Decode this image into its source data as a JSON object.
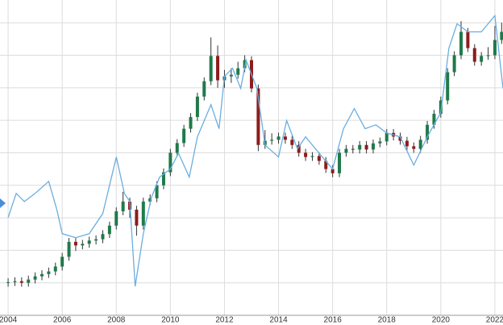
{
  "chart_data": {
    "type": "candlestick",
    "x": [
      2004,
      2004.25,
      2004.5,
      2004.75,
      2005,
      2005.25,
      2005.5,
      2005.75,
      2006,
      2006.25,
      2006.5,
      2006.75,
      2007,
      2007.25,
      2007.5,
      2007.75,
      2008,
      2008.25,
      2008.5,
      2008.75,
      2009,
      2009.25,
      2009.5,
      2009.75,
      2010,
      2010.25,
      2010.5,
      2010.75,
      2011,
      2011.25,
      2011.5,
      2011.75,
      2012,
      2012.25,
      2012.5,
      2012.75,
      2013,
      2013.25,
      2013.5,
      2013.75,
      2014,
      2014.25,
      2014.5,
      2014.75,
      2015,
      2015.25,
      2015.5,
      2015.75,
      2016,
      2016.25,
      2016.5,
      2016.75,
      2017,
      2017.25,
      2017.5,
      2017.75,
      2018,
      2018.25,
      2018.5,
      2018.75,
      2019,
      2019.25,
      2019.5,
      2019.75,
      2020,
      2020.25,
      2020.5,
      2020.75,
      2021,
      2021.25,
      2021.5,
      2021.75,
      2022,
      2022.25
    ],
    "open": [
      10.0,
      10.2,
      10.5,
      10.0,
      11.0,
      12.0,
      12.7,
      13.5,
      15.0,
      18.0,
      22.6,
      21.5,
      22.0,
      23.0,
      23.4,
      25.0,
      27.6,
      32.0,
      35.0,
      32.5,
      27.6,
      35.0,
      36.0,
      40.0,
      44.0,
      50.0,
      53.0,
      57.4,
      61.0,
      67.3,
      72.0,
      79.8,
      72.3,
      73.5,
      74.0,
      76.0,
      78.5,
      69.8,
      52.4,
      53.7,
      54.0,
      55.0,
      54.0,
      52.4,
      50.0,
      48.7,
      49.0,
      47.5,
      45.0,
      43.7,
      50.0,
      51.2,
      51.0,
      52.4,
      51.0,
      52.9,
      53.5,
      56.1,
      55.0,
      53.7,
      52.0,
      51.2,
      54.0,
      58.6,
      62.0,
      66.1,
      74.8,
      80.0,
      87.2,
      82.2,
      78.0,
      79.8,
      80.0,
      84.7
    ],
    "high": [
      11.4,
      11.7,
      11.7,
      12.2,
      13.2,
      13.9,
      14.7,
      16.2,
      19.2,
      23.8,
      23.8,
      23.2,
      24.2,
      24.6,
      26.2,
      28.8,
      33.2,
      38.0,
      36.2,
      33.7,
      36.2,
      37.2,
      41.2,
      45.2,
      51.2,
      54.2,
      58.6,
      62.2,
      68.5,
      73.2,
      85.5,
      83.0,
      75.5,
      76.0,
      78.0,
      80.0,
      79.7,
      71.0,
      57.0,
      56.0,
      56.2,
      56.2,
      55.2,
      53.6,
      51.2,
      50.2,
      50.2,
      48.7,
      46.2,
      51.2,
      52.4,
      52.4,
      53.6,
      53.6,
      54.1,
      54.7,
      57.3,
      57.3,
      56.2,
      54.9,
      53.2,
      55.2,
      59.8,
      63.2,
      67.3,
      76.0,
      81.2,
      90.5,
      88.4,
      83.4,
      81.0,
      82.5,
      89.0,
      90.0
    ],
    "low": [
      8.8,
      9.0,
      8.8,
      8.8,
      9.8,
      10.8,
      11.5,
      12.3,
      13.8,
      16.8,
      19.8,
      20.3,
      20.8,
      21.8,
      22.2,
      23.8,
      26.4,
      30.8,
      30.0,
      24.5,
      26.4,
      33.8,
      34.8,
      38.8,
      42.8,
      48.8,
      51.8,
      56.2,
      59.8,
      66.1,
      70.8,
      70.0,
      70.0,
      71.5,
      72.8,
      74.8,
      68.6,
      50.5,
      51.2,
      52.5,
      52.8,
      52.8,
      51.2,
      48.8,
      47.5,
      47.5,
      46.3,
      43.8,
      42.5,
      42.5,
      48.8,
      49.8,
      49.8,
      49.8,
      49.8,
      51.7,
      52.3,
      53.8,
      52.5,
      50.8,
      50.0,
      50.0,
      52.8,
      57.4,
      60.8,
      64.9,
      73.6,
      78.8,
      81.0,
      76.8,
      76.8,
      78.6,
      78.8,
      83.5
    ],
    "close": [
      10.2,
      10.5,
      10.0,
      11.0,
      12.0,
      12.7,
      13.5,
      15.0,
      18.0,
      22.6,
      21.5,
      22.0,
      23.0,
      23.4,
      25.0,
      27.6,
      32.0,
      35.0,
      32.5,
      27.6,
      35.0,
      36.0,
      40.0,
      44.0,
      50.0,
      53.0,
      57.4,
      61.0,
      67.3,
      72.0,
      79.8,
      72.3,
      73.5,
      74.0,
      76.0,
      78.5,
      69.8,
      52.4,
      53.7,
      54.0,
      55.0,
      54.0,
      52.4,
      50.0,
      48.7,
      49.0,
      47.5,
      45.0,
      43.7,
      50.0,
      51.2,
      51.0,
      52.4,
      51.0,
      52.9,
      53.5,
      56.1,
      55.0,
      53.7,
      52.0,
      51.2,
      54.0,
      58.6,
      62.0,
      66.1,
      74.8,
      80.0,
      87.2,
      82.2,
      78.0,
      79.8,
      80.0,
      84.7,
      87.2
    ],
    "up_color": "#1f7a4a",
    "down_color": "#8e1c1c",
    "line": {
      "color": "#6aaee0",
      "x": [
        2004,
        2004.3,
        2004.6,
        2005,
        2005.5,
        2005.8,
        2006,
        2006.5,
        2007,
        2007.5,
        2008,
        2008.3,
        2008.5,
        2008.7,
        2009,
        2009.3,
        2009.6,
        2010,
        2010.3,
        2010.7,
        2011,
        2011.5,
        2011.8,
        2012,
        2012.3,
        2012.6,
        2012.8,
        2013.2,
        2013.5,
        2014,
        2014.3,
        2014.7,
        2015,
        2015.5,
        2016,
        2016.4,
        2016.8,
        2017.2,
        2017.6,
        2018,
        2018.5,
        2019,
        2019.5,
        2020,
        2020.3,
        2020.6,
        2021,
        2021.5,
        2022,
        2022.3
      ],
      "values": [
        30.1,
        37.5,
        35.0,
        37.5,
        41.2,
        32.5,
        25.1,
        23.9,
        25.1,
        31.3,
        48.7,
        37.5,
        35.0,
        8.9,
        25.1,
        36.3,
        42.5,
        45.0,
        49.9,
        42.5,
        54.9,
        64.8,
        57.4,
        73.5,
        76.0,
        69.8,
        78.5,
        69.8,
        52.4,
        48.7,
        59.9,
        51.2,
        54.9,
        49.9,
        45.0,
        57.4,
        63.6,
        57.4,
        58.6,
        56.1,
        54.9,
        46.2,
        54.9,
        62.4,
        82.2,
        89.7,
        87.2,
        87.2,
        92.2,
        69.8
      ]
    },
    "xlim": [
      2003.7,
      2022.3
    ],
    "xticks": [
      2004,
      2006,
      2008,
      2010,
      2012,
      2014,
      2016,
      2018,
      2020,
      2022
    ],
    "ylim": [
      0,
      97
    ],
    "yticks": [
      10,
      20,
      30,
      40,
      50,
      60,
      70,
      80,
      90
    ],
    "grid": true
  }
}
